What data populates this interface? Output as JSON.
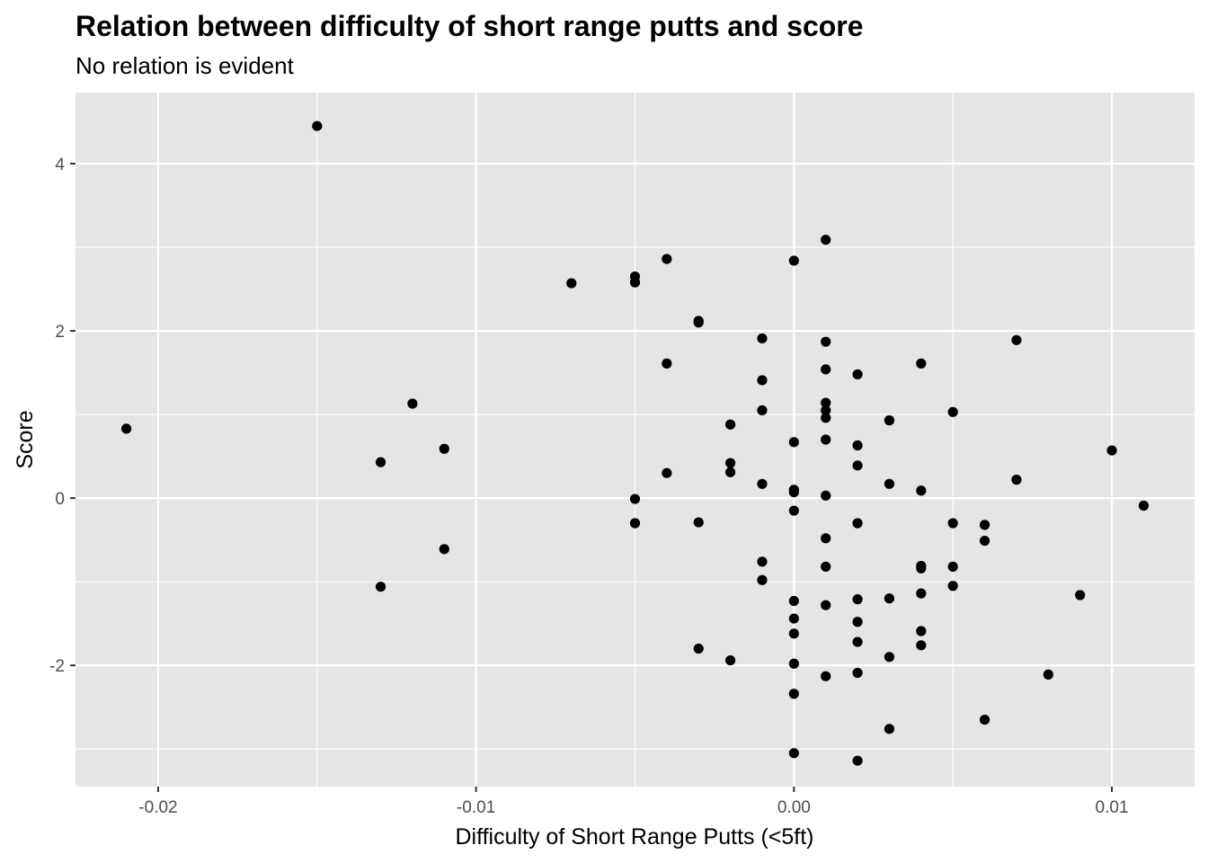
{
  "chart_data": {
    "type": "scatter",
    "title": "Relation between difficulty of short range putts and score",
    "subtitle": "No relation is evident",
    "xlabel": "Difficulty of Short Range Putts (<5ft)",
    "ylabel": "Score",
    "xlim": [
      -0.0226,
      0.0126
    ],
    "ylim": [
      -3.45,
      4.85
    ],
    "x_ticks": [
      -0.02,
      -0.01,
      0.0,
      0.01
    ],
    "x_tick_labels": [
      "-0.02",
      "-0.01",
      "0.00",
      "0.01"
    ],
    "y_ticks": [
      -2,
      0,
      2,
      4
    ],
    "y_tick_labels": [
      "-2",
      "0",
      "2",
      "4"
    ],
    "grid": true,
    "legend": "none",
    "colors": {
      "panel_background": "#e5e5e5",
      "grid_line": "#ffffff",
      "point": "#000000",
      "tick_label": "#4d4d4d"
    },
    "points": [
      {
        "x": -0.021,
        "y": 0.83
      },
      {
        "x": -0.015,
        "y": 4.45
      },
      {
        "x": -0.013,
        "y": 0.43
      },
      {
        "x": -0.013,
        "y": -1.06
      },
      {
        "x": -0.012,
        "y": 1.13
      },
      {
        "x": -0.011,
        "y": 0.59
      },
      {
        "x": -0.011,
        "y": -0.61
      },
      {
        "x": -0.007,
        "y": 2.57
      },
      {
        "x": -0.005,
        "y": 2.65
      },
      {
        "x": -0.005,
        "y": 2.58
      },
      {
        "x": -0.005,
        "y": -0.01
      },
      {
        "x": -0.005,
        "y": -0.3
      },
      {
        "x": -0.004,
        "y": 2.86
      },
      {
        "x": -0.004,
        "y": 1.61
      },
      {
        "x": -0.004,
        "y": 0.3
      },
      {
        "x": -0.003,
        "y": 2.12
      },
      {
        "x": -0.003,
        "y": 2.1
      },
      {
        "x": -0.003,
        "y": -0.29
      },
      {
        "x": -0.003,
        "y": -1.8
      },
      {
        "x": -0.002,
        "y": 0.88
      },
      {
        "x": -0.002,
        "y": 0.42
      },
      {
        "x": -0.002,
        "y": 0.31
      },
      {
        "x": -0.002,
        "y": -1.94
      },
      {
        "x": -0.001,
        "y": 1.91
      },
      {
        "x": -0.001,
        "y": 1.41
      },
      {
        "x": -0.001,
        "y": 1.05
      },
      {
        "x": -0.001,
        "y": 0.17
      },
      {
        "x": -0.001,
        "y": -0.76
      },
      {
        "x": -0.001,
        "y": -0.98
      },
      {
        "x": 0.0,
        "y": 2.84
      },
      {
        "x": 0.0,
        "y": 0.67
      },
      {
        "x": 0.0,
        "y": 0.1
      },
      {
        "x": 0.0,
        "y": 0.07
      },
      {
        "x": 0.0,
        "y": -0.15
      },
      {
        "x": 0.0,
        "y": -1.23
      },
      {
        "x": 0.0,
        "y": -1.44
      },
      {
        "x": 0.0,
        "y": -1.62
      },
      {
        "x": 0.0,
        "y": -1.98
      },
      {
        "x": 0.0,
        "y": -2.34
      },
      {
        "x": 0.0,
        "y": -3.05
      },
      {
        "x": 0.001,
        "y": 3.09
      },
      {
        "x": 0.001,
        "y": 1.87
      },
      {
        "x": 0.001,
        "y": 1.54
      },
      {
        "x": 0.001,
        "y": 1.14
      },
      {
        "x": 0.001,
        "y": 1.05
      },
      {
        "x": 0.001,
        "y": 0.96
      },
      {
        "x": 0.001,
        "y": 0.7
      },
      {
        "x": 0.001,
        "y": 0.03
      },
      {
        "x": 0.001,
        "y": -0.48
      },
      {
        "x": 0.001,
        "y": -0.82
      },
      {
        "x": 0.001,
        "y": -1.28
      },
      {
        "x": 0.001,
        "y": -2.13
      },
      {
        "x": 0.002,
        "y": 1.48
      },
      {
        "x": 0.002,
        "y": 0.63
      },
      {
        "x": 0.002,
        "y": 0.39
      },
      {
        "x": 0.002,
        "y": -0.3
      },
      {
        "x": 0.002,
        "y": -1.21
      },
      {
        "x": 0.002,
        "y": -1.48
      },
      {
        "x": 0.002,
        "y": -1.72
      },
      {
        "x": 0.002,
        "y": -2.09
      },
      {
        "x": 0.002,
        "y": -3.14
      },
      {
        "x": 0.003,
        "y": 0.93
      },
      {
        "x": 0.003,
        "y": 0.17
      },
      {
        "x": 0.003,
        "y": -1.2
      },
      {
        "x": 0.003,
        "y": -1.9
      },
      {
        "x": 0.003,
        "y": -2.76
      },
      {
        "x": 0.004,
        "y": 1.61
      },
      {
        "x": 0.004,
        "y": 0.09
      },
      {
        "x": 0.004,
        "y": -0.81
      },
      {
        "x": 0.004,
        "y": -0.84
      },
      {
        "x": 0.004,
        "y": -1.14
      },
      {
        "x": 0.004,
        "y": -1.59
      },
      {
        "x": 0.004,
        "y": -1.76
      },
      {
        "x": 0.005,
        "y": 1.03
      },
      {
        "x": 0.005,
        "y": -0.3
      },
      {
        "x": 0.005,
        "y": -0.82
      },
      {
        "x": 0.005,
        "y": -1.05
      },
      {
        "x": 0.006,
        "y": -0.32
      },
      {
        "x": 0.006,
        "y": -0.51
      },
      {
        "x": 0.006,
        "y": -2.65
      },
      {
        "x": 0.007,
        "y": 1.89
      },
      {
        "x": 0.007,
        "y": 0.22
      },
      {
        "x": 0.008,
        "y": -2.11
      },
      {
        "x": 0.009,
        "y": -1.16
      },
      {
        "x": 0.01,
        "y": 0.57
      },
      {
        "x": 0.011,
        "y": -0.09
      }
    ]
  }
}
